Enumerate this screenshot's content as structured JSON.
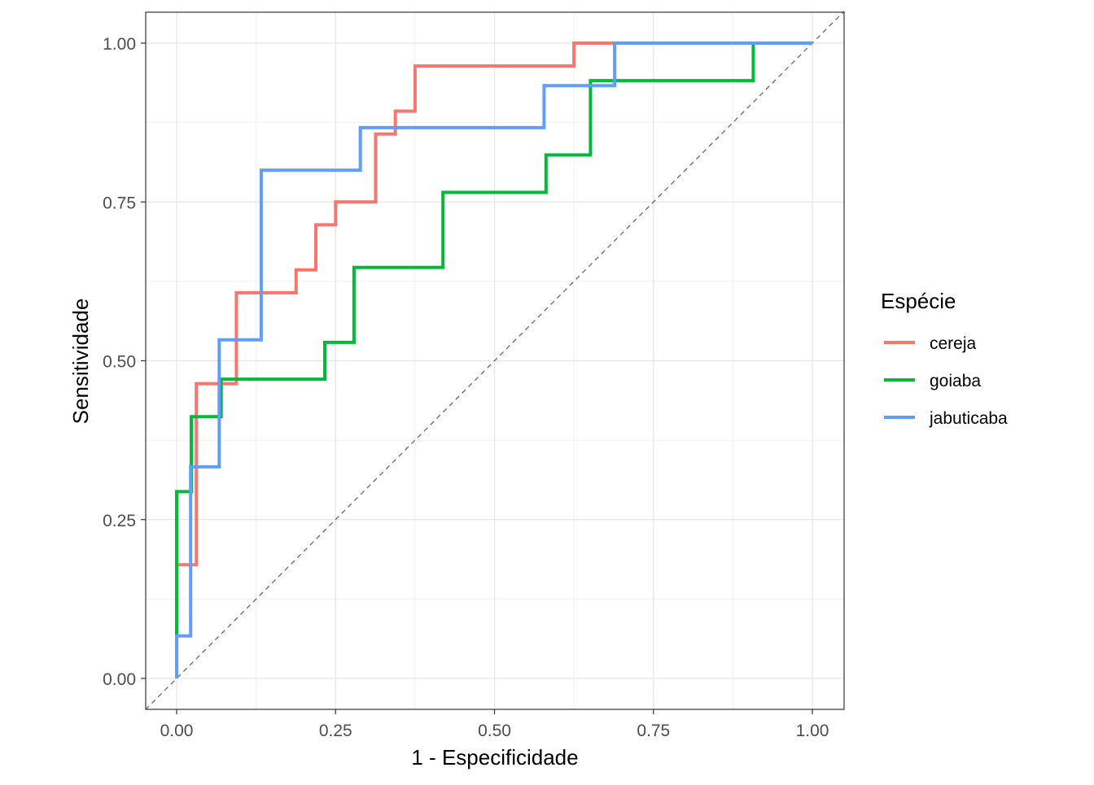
{
  "chart_data": {
    "type": "line",
    "title": "",
    "xlabel": "1 - Especificidade",
    "ylabel": "Sensitividade",
    "xlim": [
      -0.05,
      1.05
    ],
    "ylim": [
      -0.05,
      1.05
    ],
    "xticks": [
      0,
      0.25,
      0.5,
      0.75,
      1
    ],
    "yticks": [
      0,
      0.25,
      0.5,
      0.75,
      1
    ],
    "xtick_labels": [
      "0.00",
      "0.25",
      "0.50",
      "0.75",
      "1.00"
    ],
    "ytick_labels": [
      "0.00",
      "0.25",
      "0.50",
      "0.75",
      "1.00"
    ],
    "grid": true,
    "reference_line": {
      "from": [
        0,
        0
      ],
      "to": [
        1,
        1
      ],
      "style": "dashed",
      "color": "#666666"
    },
    "legend": {
      "title": "Espécie",
      "position": "right"
    },
    "series": [
      {
        "name": "cereja",
        "color": "#F8766D",
        "x": [
          0,
          0,
          0.031,
          0.031,
          0.094,
          0.094,
          0.188,
          0.188,
          0.219,
          0.219,
          0.25,
          0.25,
          0.313,
          0.313,
          0.344,
          0.344,
          0.375,
          0.375,
          0.625,
          0.625,
          1
        ],
        "y": [
          0,
          0.179,
          0.179,
          0.464,
          0.464,
          0.607,
          0.607,
          0.643,
          0.643,
          0.714,
          0.714,
          0.75,
          0.75,
          0.857,
          0.857,
          0.893,
          0.893,
          0.964,
          0.964,
          1,
          1
        ]
      },
      {
        "name": "goiaba",
        "color": "#00BA38",
        "x": [
          0,
          0,
          0.023,
          0.023,
          0.07,
          0.07,
          0.233,
          0.233,
          0.279,
          0.279,
          0.419,
          0.419,
          0.581,
          0.581,
          0.651,
          0.651,
          0.907,
          0.907,
          1
        ],
        "y": [
          0,
          0.294,
          0.294,
          0.412,
          0.412,
          0.471,
          0.471,
          0.529,
          0.529,
          0.647,
          0.647,
          0.765,
          0.765,
          0.824,
          0.824,
          0.941,
          0.941,
          1,
          1
        ]
      },
      {
        "name": "jabuticaba",
        "color": "#619CFF",
        "x": [
          0,
          0,
          0.022,
          0.022,
          0.067,
          0.067,
          0.133,
          0.133,
          0.289,
          0.289,
          0.578,
          0.578,
          0.689,
          0.689,
          1
        ],
        "y": [
          0,
          0.067,
          0.067,
          0.333,
          0.333,
          0.533,
          0.533,
          0.8,
          0.8,
          0.867,
          0.867,
          0.933,
          0.933,
          1,
          1
        ]
      }
    ]
  }
}
